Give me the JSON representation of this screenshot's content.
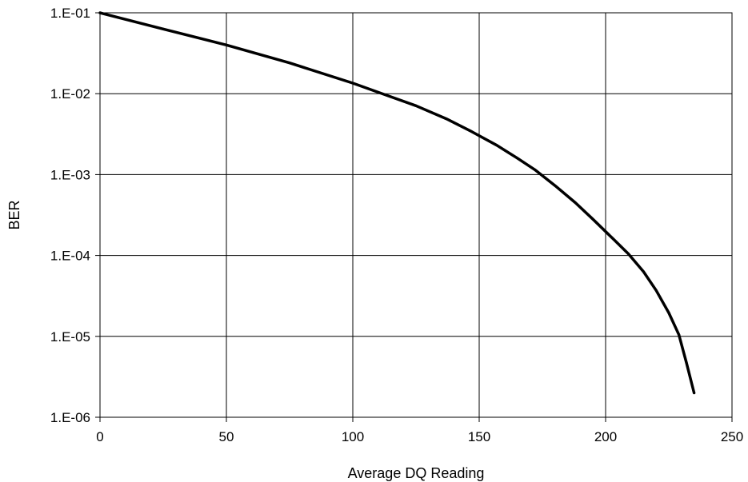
{
  "chart_data": {
    "type": "line",
    "title": "",
    "xlabel": "Average DQ Reading",
    "ylabel": "BER",
    "xlim": [
      0,
      250
    ],
    "ylim": [
      1e-06,
      0.1
    ],
    "y_scale": "log",
    "grid": true,
    "legend": "none",
    "x_ticks": [
      {
        "value": 0,
        "label": "0"
      },
      {
        "value": 50,
        "label": "50"
      },
      {
        "value": 100,
        "label": "100"
      },
      {
        "value": 150,
        "label": "150"
      },
      {
        "value": 200,
        "label": "200"
      },
      {
        "value": 250,
        "label": "250"
      }
    ],
    "y_ticks": [
      {
        "value": 0.1,
        "label": "1.E-01"
      },
      {
        "value": 0.01,
        "label": "1.E-02"
      },
      {
        "value": 0.001,
        "label": "1.E-03"
      },
      {
        "value": 0.0001,
        "label": "1.E-04"
      },
      {
        "value": 1e-05,
        "label": "1.E-05"
      },
      {
        "value": 1e-06,
        "label": "1.E-06"
      }
    ],
    "series": [
      {
        "color": "#000000",
        "points": [
          {
            "x": 0,
            "y": 0.1
          },
          {
            "x": 25,
            "y": 0.063
          },
          {
            "x": 50,
            "y": 0.04
          },
          {
            "x": 75,
            "y": 0.024
          },
          {
            "x": 100,
            "y": 0.0135
          },
          {
            "x": 112,
            "y": 0.0099
          },
          {
            "x": 125,
            "y": 0.0071
          },
          {
            "x": 137,
            "y": 0.0049
          },
          {
            "x": 147,
            "y": 0.0034
          },
          {
            "x": 157,
            "y": 0.0023
          },
          {
            "x": 165,
            "y": 0.0016
          },
          {
            "x": 172,
            "y": 0.00115
          },
          {
            "x": 180,
            "y": 0.00073
          },
          {
            "x": 188,
            "y": 0.00045
          },
          {
            "x": 195,
            "y": 0.00028
          },
          {
            "x": 203,
            "y": 0.00016
          },
          {
            "x": 209,
            "y": 0.000105
          },
          {
            "x": 215,
            "y": 6.3e-05
          },
          {
            "x": 220,
            "y": 3.7e-05
          },
          {
            "x": 225,
            "y": 1.95e-05
          },
          {
            "x": 229,
            "y": 1.05e-05
          },
          {
            "x": 232,
            "y": 4.7e-06
          },
          {
            "x": 235,
            "y": 2e-06
          }
        ]
      }
    ]
  }
}
